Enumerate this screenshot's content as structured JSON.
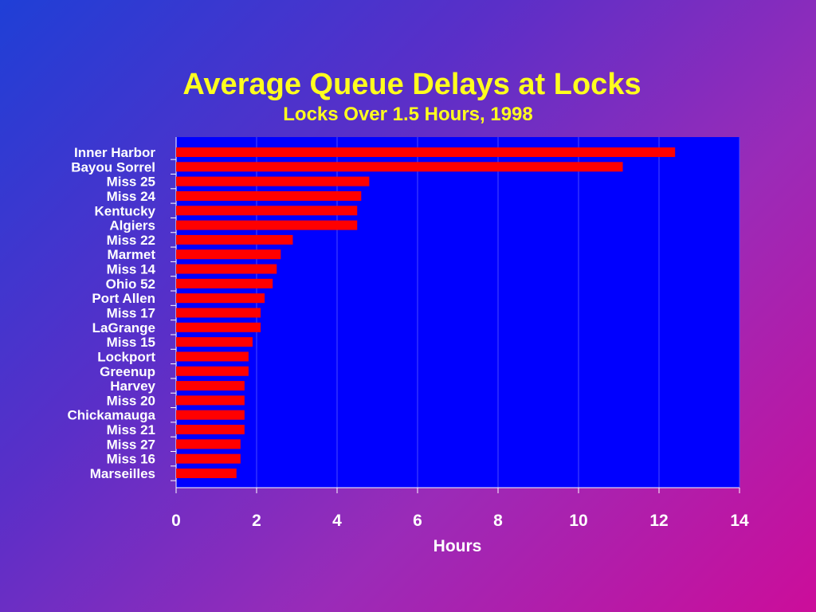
{
  "chart_data": {
    "type": "bar",
    "orientation": "horizontal",
    "title": "Average Queue Delays at Locks",
    "subtitle": "Locks Over 1.5 Hours, 1998",
    "xlabel": "Hours",
    "ylabel": "",
    "xlim": [
      0,
      14
    ],
    "xticks": [
      "0",
      "2",
      "4",
      "6",
      "8",
      "10",
      "12",
      "14"
    ],
    "grid": "vertical",
    "legend": "none",
    "colors": {
      "bar": "#ff0000",
      "plot_bg": "#0000ff",
      "title": "#ffff1e",
      "text": "#ffffff"
    },
    "categories": [
      "Inner Harbor",
      "Bayou Sorrel",
      "Miss 25",
      "Miss 24",
      "Kentucky",
      "Algiers",
      "Miss 22",
      "Marmet",
      "Miss 14",
      "Ohio 52",
      "Port Allen",
      "Miss 17",
      "LaGrange",
      "Miss 15",
      "Lockport",
      "Greenup",
      "Harvey",
      "Miss 20",
      "Chickamauga",
      "Miss 21",
      "Miss 27",
      "Miss 16",
      "Marseilles"
    ],
    "values": [
      12.4,
      11.1,
      4.8,
      4.6,
      4.5,
      4.5,
      2.9,
      2.6,
      2.5,
      2.4,
      2.2,
      2.1,
      2.1,
      1.9,
      1.8,
      1.8,
      1.7,
      1.7,
      1.7,
      1.7,
      1.6,
      1.6,
      1.5
    ]
  }
}
